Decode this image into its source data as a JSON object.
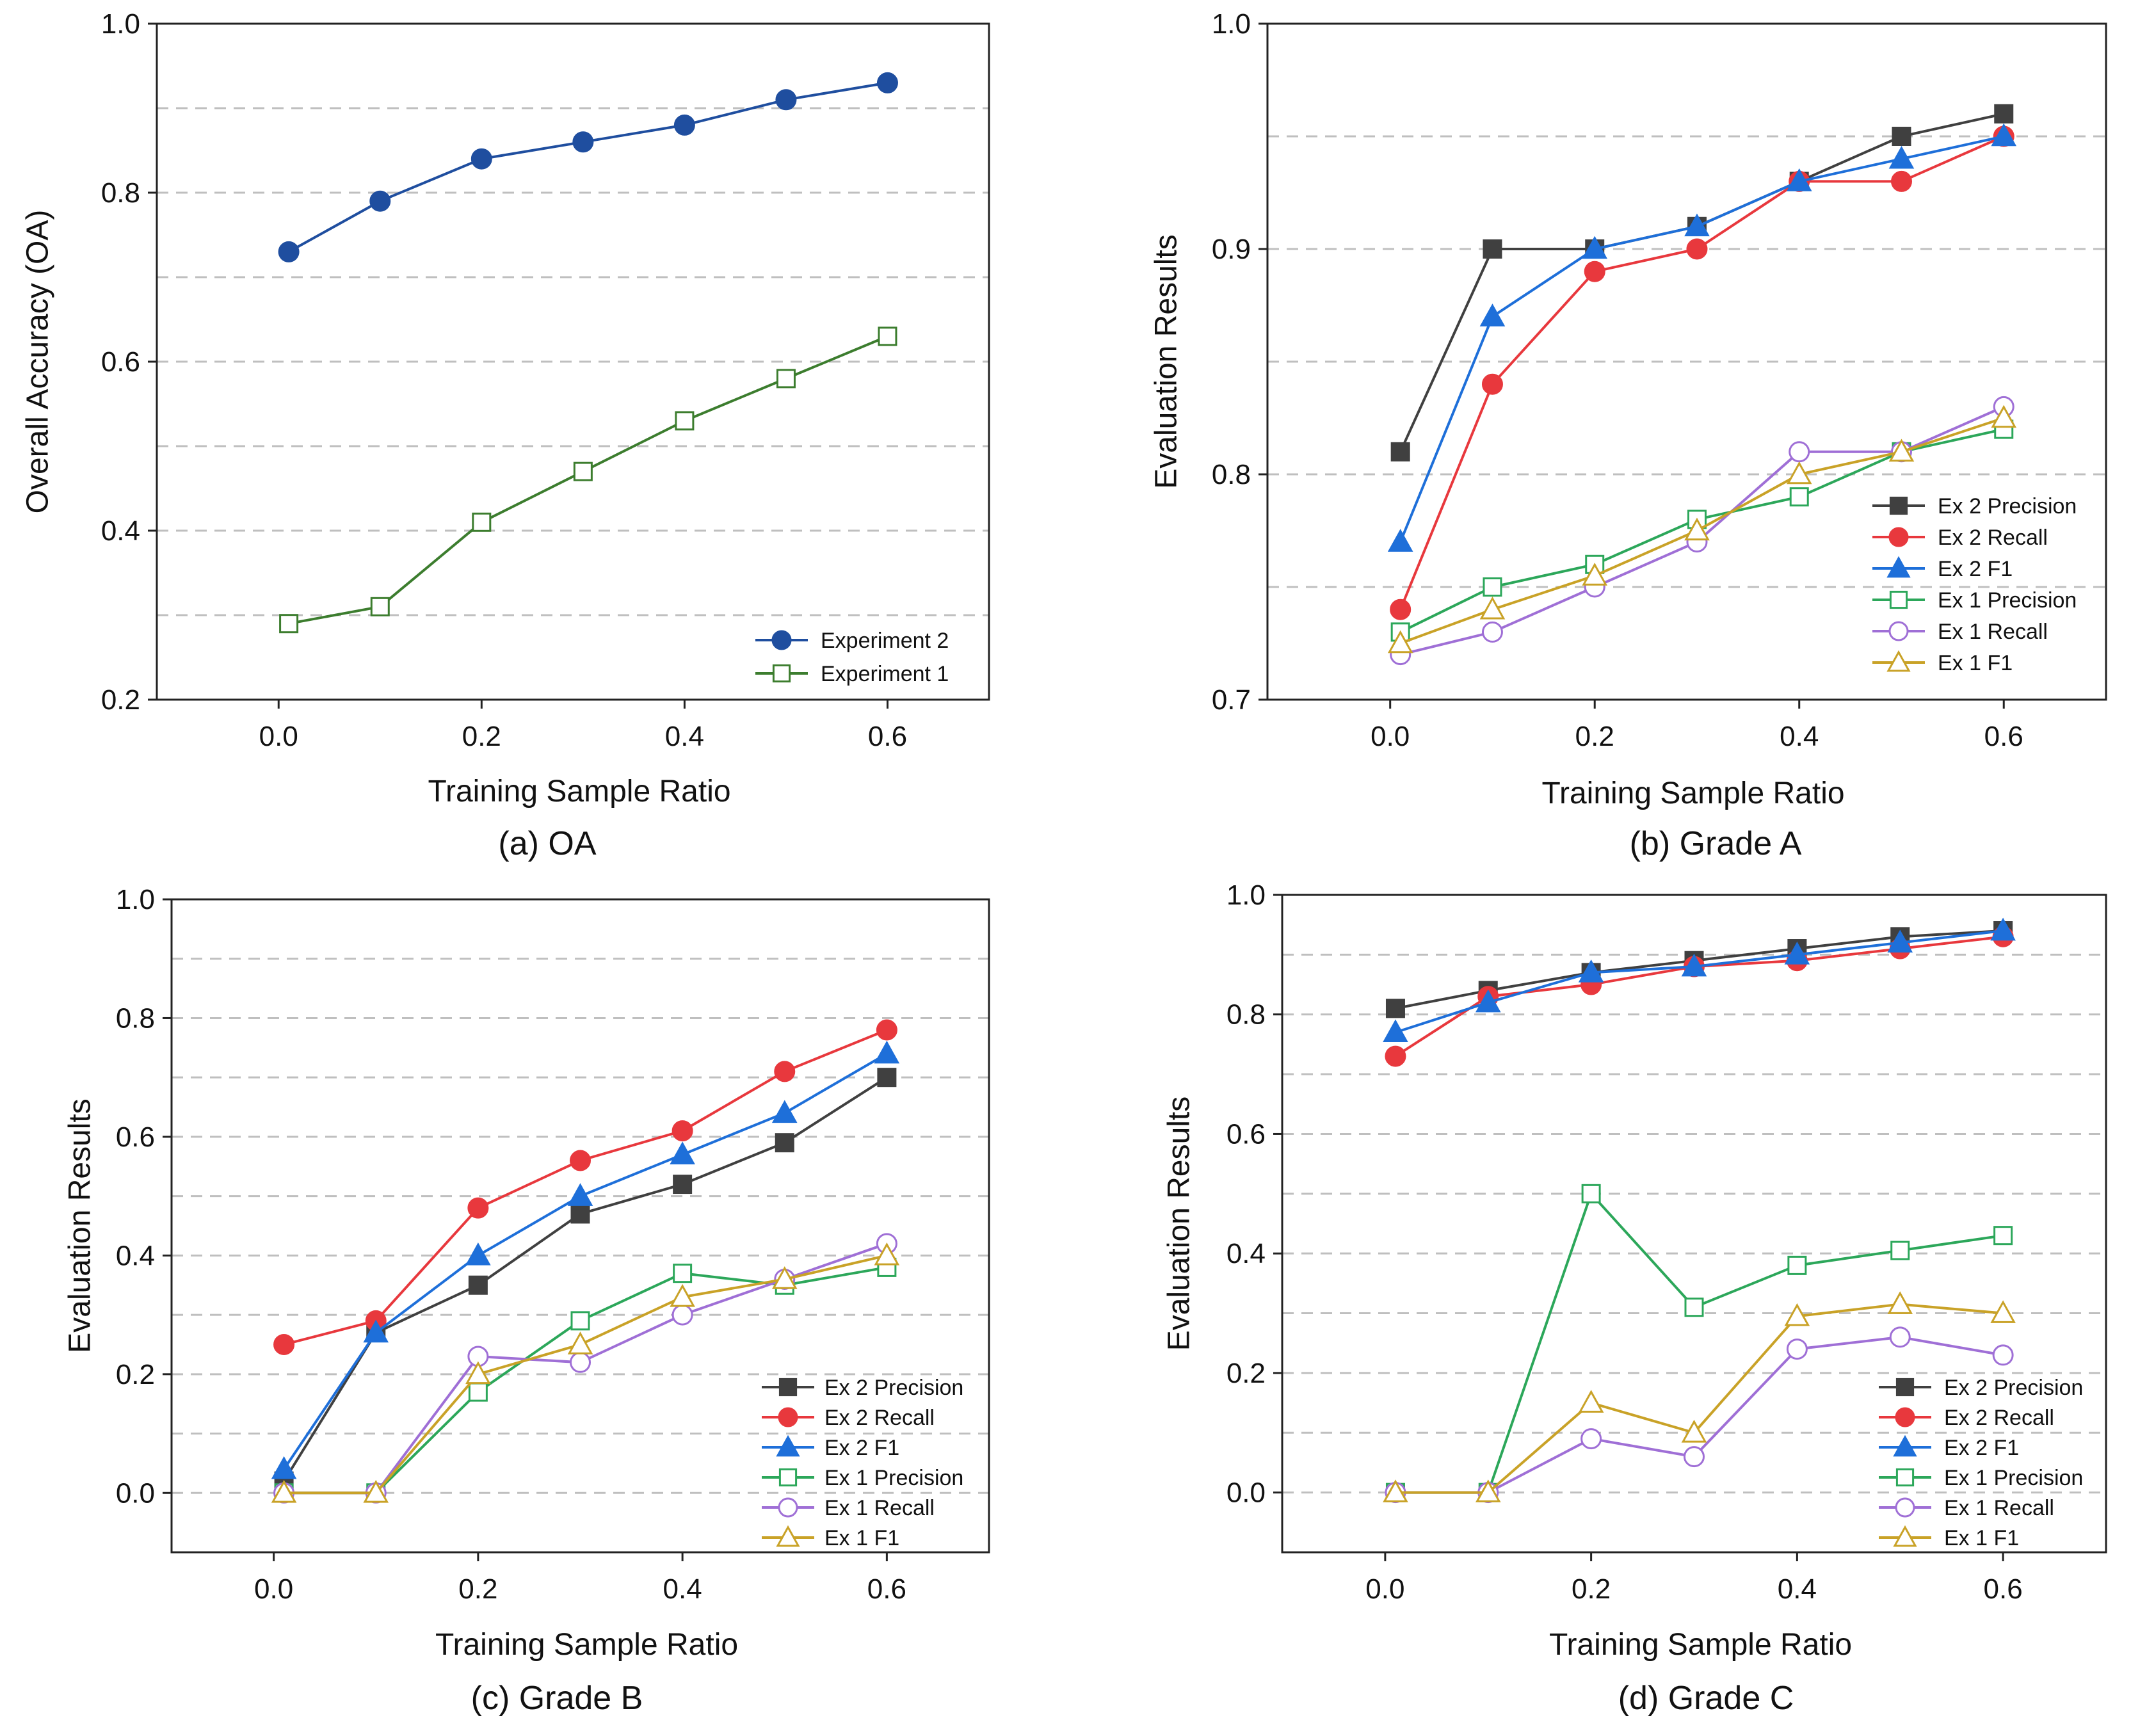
{
  "figure": {
    "series_styles": {
      "Experiment 2": {
        "color": "#1f4e9f",
        "marker": "circle",
        "fill": "filled"
      },
      "Experiment 1": {
        "color": "#3c7d2e",
        "marker": "square",
        "fill": "open"
      },
      "Ex 2 Precision": {
        "color": "#404040",
        "marker": "square",
        "fill": "filled"
      },
      "Ex 2 Recall": {
        "color": "#e8383d",
        "marker": "circle",
        "fill": "filled"
      },
      "Ex 2 F1": {
        "color": "#1e6fd9",
        "marker": "triangle",
        "fill": "filled"
      },
      "Ex 1 Precision": {
        "color": "#2ca75a",
        "marker": "square",
        "fill": "open"
      },
      "Ex 1 Recall": {
        "color": "#9f6fd6",
        "marker": "circle",
        "fill": "open"
      },
      "Ex 1 F1": {
        "color": "#c9a227",
        "marker": "triangle",
        "fill": "open"
      }
    }
  },
  "chart_data": [
    {
      "id": "a",
      "type": "line",
      "caption": "(a)  OA",
      "xlabel": "Training Sample Ratio",
      "ylabel": "Overall Accuracy (OA)",
      "xlim": [
        -0.12,
        0.7
      ],
      "ylim": [
        0.2,
        1.0
      ],
      "xticks": [
        0.0,
        0.2,
        0.4,
        0.6
      ],
      "xtick_labels": [
        "0.0",
        "0.2",
        "0.4",
        "0.6"
      ],
      "yticks": [
        0.2,
        0.4,
        0.6,
        0.8,
        1.0
      ],
      "ytick_labels": [
        "0.2",
        "0.4",
        "0.6",
        "0.8",
        "1.0"
      ],
      "gridlines": [
        0.3,
        0.4,
        0.5,
        0.6,
        0.7,
        0.8,
        0.9
      ],
      "legend_position": "bottom-right",
      "x": [
        0.01,
        0.1,
        0.2,
        0.3,
        0.4,
        0.5,
        0.6
      ],
      "series": [
        {
          "name": "Experiment 2",
          "values": [
            0.73,
            0.79,
            0.84,
            0.86,
            0.88,
            0.91,
            0.93
          ]
        },
        {
          "name": "Experiment 1",
          "values": [
            0.29,
            0.31,
            0.41,
            0.47,
            0.53,
            0.58,
            0.63
          ]
        }
      ]
    },
    {
      "id": "b",
      "type": "line",
      "caption": "(b) Grade A",
      "xlabel": "Training Sample Ratio",
      "ylabel": "Evaluation Results",
      "xlim": [
        -0.12,
        0.7
      ],
      "ylim": [
        0.7,
        1.0
      ],
      "xticks": [
        0.0,
        0.2,
        0.4,
        0.6
      ],
      "xtick_labels": [
        "0.0",
        "0.2",
        "0.4",
        "0.6"
      ],
      "yticks": [
        0.7,
        0.8,
        0.9,
        1.0
      ],
      "ytick_labels": [
        "0.7",
        "0.8",
        "0.9",
        "1.0"
      ],
      "gridlines": [
        0.75,
        0.8,
        0.85,
        0.9,
        0.95
      ],
      "legend_position": "bottom-right",
      "x": [
        0.01,
        0.1,
        0.2,
        0.3,
        0.4,
        0.5,
        0.6
      ],
      "series": [
        {
          "name": "Ex 2 Precision",
          "values": [
            0.81,
            0.9,
            0.9,
            0.91,
            0.93,
            0.95,
            0.96
          ]
        },
        {
          "name": "Ex 2 Recall",
          "values": [
            0.74,
            0.84,
            0.89,
            0.9,
            0.93,
            0.93,
            0.95
          ]
        },
        {
          "name": "Ex 2 F1",
          "values": [
            0.77,
            0.87,
            0.9,
            0.91,
            0.93,
            0.94,
            0.95
          ]
        },
        {
          "name": "Ex 1 Precision",
          "values": [
            0.73,
            0.75,
            0.76,
            0.78,
            0.79,
            0.81,
            0.82
          ]
        },
        {
          "name": "Ex 1 Recall",
          "values": [
            0.72,
            0.73,
            0.75,
            0.77,
            0.81,
            0.81,
            0.83
          ]
        },
        {
          "name": "Ex 1 F1",
          "values": [
            0.725,
            0.74,
            0.755,
            0.775,
            0.8,
            0.81,
            0.825
          ]
        }
      ]
    },
    {
      "id": "c",
      "type": "line",
      "caption": "(c) Grade B",
      "xlabel": "Training Sample Ratio",
      "ylabel": "Evaluation Results",
      "xlim": [
        -0.1,
        0.7
      ],
      "ylim": [
        -0.1,
        1.0
      ],
      "xticks": [
        0.0,
        0.2,
        0.4,
        0.6
      ],
      "xtick_labels": [
        "0.0",
        "0.2",
        "0.4",
        "0.6"
      ],
      "yticks": [
        0.0,
        0.2,
        0.4,
        0.6,
        0.8,
        1.0
      ],
      "ytick_labels": [
        "0.0",
        "0.2",
        "0.4",
        "0.6",
        "0.8",
        "1.0"
      ],
      "gridlines": [
        0.0,
        0.1,
        0.2,
        0.3,
        0.4,
        0.5,
        0.6,
        0.7,
        0.8,
        0.9
      ],
      "legend_position": "bottom-right",
      "x": [
        0.01,
        0.1,
        0.2,
        0.3,
        0.4,
        0.5,
        0.6
      ],
      "series": [
        {
          "name": "Ex 2 Precision",
          "values": [
            0.02,
            0.27,
            0.35,
            0.47,
            0.52,
            0.59,
            0.7
          ]
        },
        {
          "name": "Ex 2 Recall",
          "values": [
            0.25,
            0.29,
            0.48,
            0.56,
            0.61,
            0.71,
            0.78
          ]
        },
        {
          "name": "Ex 2 F1",
          "values": [
            0.04,
            0.27,
            0.4,
            0.5,
            0.57,
            0.64,
            0.74
          ]
        },
        {
          "name": "Ex 1 Precision",
          "values": [
            0.0,
            0.0,
            0.17,
            0.29,
            0.37,
            0.35,
            0.38
          ]
        },
        {
          "name": "Ex 1 Recall",
          "values": [
            0.0,
            0.0,
            0.23,
            0.22,
            0.3,
            0.36,
            0.42
          ]
        },
        {
          "name": "Ex 1 F1",
          "values": [
            0.0,
            0.0,
            0.2,
            0.25,
            0.33,
            0.36,
            0.4
          ]
        }
      ]
    },
    {
      "id": "d",
      "type": "line",
      "caption": "(d) Grade C",
      "xlabel": "Training Sample Ratio",
      "ylabel": "Evaluation Results",
      "xlim": [
        -0.1,
        0.7
      ],
      "ylim": [
        -0.1,
        1.0
      ],
      "xticks": [
        0.0,
        0.2,
        0.4,
        0.6
      ],
      "xtick_labels": [
        "0.0",
        "0.2",
        "0.4",
        "0.6"
      ],
      "yticks": [
        0.0,
        0.2,
        0.4,
        0.6,
        0.8,
        1.0
      ],
      "ytick_labels": [
        "0.0",
        "0.2",
        "0.4",
        "0.6",
        "0.8",
        "1.0"
      ],
      "gridlines": [
        0.0,
        0.1,
        0.2,
        0.3,
        0.4,
        0.5,
        0.6,
        0.7,
        0.8,
        0.9
      ],
      "legend_position": "bottom-right",
      "x": [
        0.01,
        0.1,
        0.2,
        0.3,
        0.4,
        0.5,
        0.6
      ],
      "series": [
        {
          "name": "Ex 2 Precision",
          "values": [
            0.81,
            0.84,
            0.87,
            0.89,
            0.91,
            0.93,
            0.94
          ]
        },
        {
          "name": "Ex 2 Recall",
          "values": [
            0.73,
            0.83,
            0.85,
            0.88,
            0.89,
            0.91,
            0.93
          ]
        },
        {
          "name": "Ex 2 F1",
          "values": [
            0.77,
            0.82,
            0.87,
            0.88,
            0.9,
            0.92,
            0.94
          ]
        },
        {
          "name": "Ex 1 Precision",
          "values": [
            0.0,
            0.0,
            0.5,
            0.31,
            0.38,
            0.405,
            0.43
          ]
        },
        {
          "name": "Ex 1 Recall",
          "values": [
            0.0,
            0.0,
            0.09,
            0.06,
            0.24,
            0.26,
            0.23
          ]
        },
        {
          "name": "Ex 1 F1",
          "values": [
            0.0,
            0.0,
            0.15,
            0.1,
            0.295,
            0.315,
            0.3
          ]
        }
      ]
    }
  ]
}
